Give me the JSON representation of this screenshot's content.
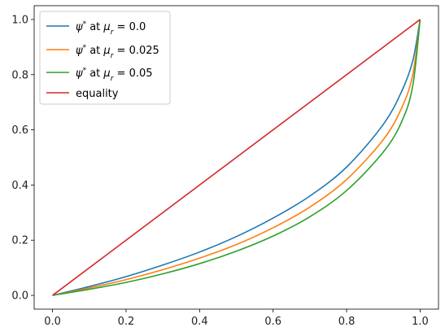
{
  "chart_data": {
    "type": "line",
    "title": "",
    "xlabel": "",
    "ylabel": "",
    "xlim": [
      -0.05,
      1.05
    ],
    "ylim": [
      -0.05,
      1.05
    ],
    "grid": false,
    "legend_position": "top-left",
    "x_ticks": [
      0.0,
      0.2,
      0.4,
      0.6,
      0.8,
      1.0
    ],
    "x_tick_labels": [
      "0.0",
      "0.2",
      "0.4",
      "0.6",
      "0.8",
      "1.0"
    ],
    "y_ticks": [
      0.0,
      0.2,
      0.4,
      0.6,
      0.8,
      1.0
    ],
    "y_tick_labels": [
      "0.0",
      "0.2",
      "0.4",
      "0.6",
      "0.8",
      "1.0"
    ],
    "series": [
      {
        "name": "ψ* at μr = 0.0",
        "legend_label": {
          "psi": "ψ",
          "star": "*",
          "at": " at ",
          "mu": "μ",
          "sub": "r",
          "eq": " = ",
          "val": "0.0"
        },
        "color": "#1f77b4",
        "x": [
          0.0,
          0.1,
          0.2,
          0.3,
          0.4,
          0.5,
          0.6,
          0.7,
          0.8,
          0.9,
          0.95,
          0.98,
          1.0
        ],
        "y": [
          0.0,
          0.032,
          0.068,
          0.11,
          0.157,
          0.213,
          0.28,
          0.36,
          0.465,
          0.62,
          0.74,
          0.85,
          1.0
        ]
      },
      {
        "name": "ψ* at μr = 0.025",
        "legend_label": {
          "psi": "ψ",
          "star": "*",
          "at": " at ",
          "mu": "μ",
          "sub": "r",
          "eq": " = ",
          "val": "0.025"
        },
        "color": "#ff7f0e",
        "x": [
          0.0,
          0.1,
          0.2,
          0.3,
          0.4,
          0.5,
          0.6,
          0.7,
          0.8,
          0.9,
          0.95,
          0.98,
          1.0
        ],
        "y": [
          0.0,
          0.027,
          0.057,
          0.093,
          0.135,
          0.184,
          0.245,
          0.32,
          0.42,
          0.565,
          0.68,
          0.8,
          1.0
        ]
      },
      {
        "name": "ψ* at μr = 0.05",
        "legend_label": {
          "psi": "ψ",
          "star": "*",
          "at": " at ",
          "mu": "μ",
          "sub": "r",
          "eq": " = ",
          "val": "0.05"
        },
        "color": "#2ca02c",
        "x": [
          0.0,
          0.1,
          0.2,
          0.3,
          0.4,
          0.5,
          0.6,
          0.7,
          0.8,
          0.9,
          0.95,
          0.98,
          1.0
        ],
        "y": [
          0.0,
          0.022,
          0.047,
          0.078,
          0.115,
          0.16,
          0.215,
          0.285,
          0.38,
          0.52,
          0.63,
          0.76,
          1.0
        ]
      },
      {
        "name": "equality",
        "legend_label": {
          "text": "equality"
        },
        "color": "#d62728",
        "x": [
          0.0,
          1.0
        ],
        "y": [
          0.0,
          1.0
        ]
      }
    ]
  }
}
